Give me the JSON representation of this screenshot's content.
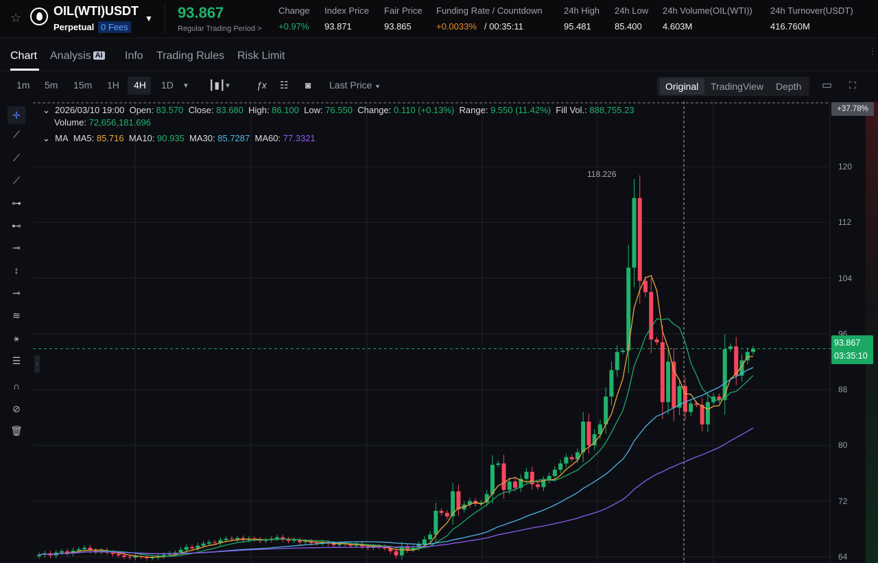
{
  "header": {
    "symbol": "OIL(WTI)USDT",
    "contract_type": "Perpetual",
    "fees_badge": "0 Fees",
    "last_price": "93.867",
    "trading_period": "Regular Trading Period >",
    "stats": [
      {
        "label": "Change",
        "value": "+0.97%",
        "color": "#20b26c"
      },
      {
        "label": "Index Price",
        "value": "93.871"
      },
      {
        "label": "Fair Price",
        "value": "93.865"
      },
      {
        "label": "Funding Rate / Countdown",
        "value": "+0.0033%",
        "value2": "/ 00:35:11",
        "color": "#f08a24"
      },
      {
        "label": "24h High",
        "value": "95.481"
      },
      {
        "label": "24h Low",
        "value": "85.400"
      },
      {
        "label": "24h Volume(OIL(WTI))",
        "value": "4.603M"
      },
      {
        "label": "24h Turnover(USDT)",
        "value": "416.760M"
      }
    ]
  },
  "tabs": [
    {
      "label": "Chart"
    },
    {
      "label": "Analysis",
      "badge": "AI"
    },
    {
      "label": "Info"
    },
    {
      "label": "Trading Rules"
    },
    {
      "label": "Risk Limit"
    }
  ],
  "toolbar": {
    "intervals": [
      "1m",
      "5m",
      "15m",
      "1H",
      "4H",
      "1D"
    ],
    "selected_interval": "4H",
    "price_type": "Last Price",
    "views": [
      "Original",
      "TradingView",
      "Depth"
    ],
    "selected_view": "Original"
  },
  "legend": {
    "datetime": "2026/03/10 19:00",
    "open_label": "Open:",
    "open": "83.570",
    "close_label": "Close:",
    "close": "83.680",
    "high_label": "High:",
    "high": "86.100",
    "low_label": "Low:",
    "low": "76.550",
    "change_label": "Change:",
    "change": "0.110 (+0.13%)",
    "range_label": "Range:",
    "range": "9.550 (11.42%)",
    "fill_label": "Fill Vol.:",
    "fill": "888,755.23",
    "volume_label": "Volume:",
    "volume": "72,656,181.696",
    "ma_label": "MA",
    "ma5_label": "MA5:",
    "ma5": "85.716",
    "ma10_label": "MA10:",
    "ma10": "90.935",
    "ma30_label": "MA30:",
    "ma30": "85.7287",
    "ma60_label": "MA60:",
    "ma60": "77.3321"
  },
  "chart_data": {
    "type": "candlestick",
    "ylim": [
      64,
      124
    ],
    "y_ticks": [
      "120",
      "112",
      "104",
      "96",
      "88",
      "80",
      "72",
      "64"
    ],
    "close": [
      64.3,
      64.5,
      64.2,
      64.6,
      64.8,
      64.5,
      64.9,
      65.1,
      65.3,
      64.9,
      64.7,
      64.9,
      64.6,
      64.4,
      64.2,
      64.0,
      63.9,
      64.1,
      64.0,
      63.8,
      63.9,
      64.1,
      64.3,
      64.5,
      64.6,
      65.0,
      65.4,
      65.2,
      65.6,
      65.9,
      66.1,
      66.0,
      66.4,
      66.6,
      66.5,
      66.7,
      66.4,
      66.6,
      66.5,
      66.3,
      66.4,
      66.6,
      66.8,
      66.5,
      66.3,
      66.4,
      66.1,
      66.2,
      66.0,
      65.9,
      66.1,
      65.9,
      65.7,
      65.9,
      65.8,
      65.6,
      65.8,
      65.5,
      65.3,
      65.5,
      65.4,
      65.2,
      64.8,
      64.2,
      65.5,
      65.0,
      65.3,
      65.8,
      66.5,
      67.2,
      70.6,
      70.3,
      69.8,
      73.4,
      70.8,
      71.5,
      72.0,
      71.6,
      71.8,
      73.0,
      77.2,
      77.4,
      73.6,
      74.8,
      73.9,
      75.2,
      76.2,
      74.4,
      74.0,
      75.0,
      75.6,
      76.5,
      77.4,
      78.3,
      78.0,
      79.0,
      83.4,
      80.0,
      81.6,
      83.0,
      87.0,
      90.8,
      93.4,
      93.6,
      105.5,
      115.5,
      103.6,
      102.0,
      95.2,
      94.8,
      86.2,
      92.0,
      85.4,
      88.5,
      84.8,
      86.0,
      85.8,
      83.0,
      86.2,
      87.0,
      86.5,
      93.8,
      94.2,
      90.0,
      92.2,
      93.4,
      93.867
    ],
    "peak_high": {
      "value": 118.226,
      "label": "118.226"
    },
    "last_price_label": "93.867",
    "countdown": "03:35:10",
    "range_change_badge": "+37.78%",
    "colors": {
      "up": "#20b26c",
      "down": "#f6465d",
      "ma5": "#f0a33a",
      "ma10": "#20a86a",
      "ma30": "#4fb6e8",
      "ma60": "#8c5cf0"
    }
  }
}
